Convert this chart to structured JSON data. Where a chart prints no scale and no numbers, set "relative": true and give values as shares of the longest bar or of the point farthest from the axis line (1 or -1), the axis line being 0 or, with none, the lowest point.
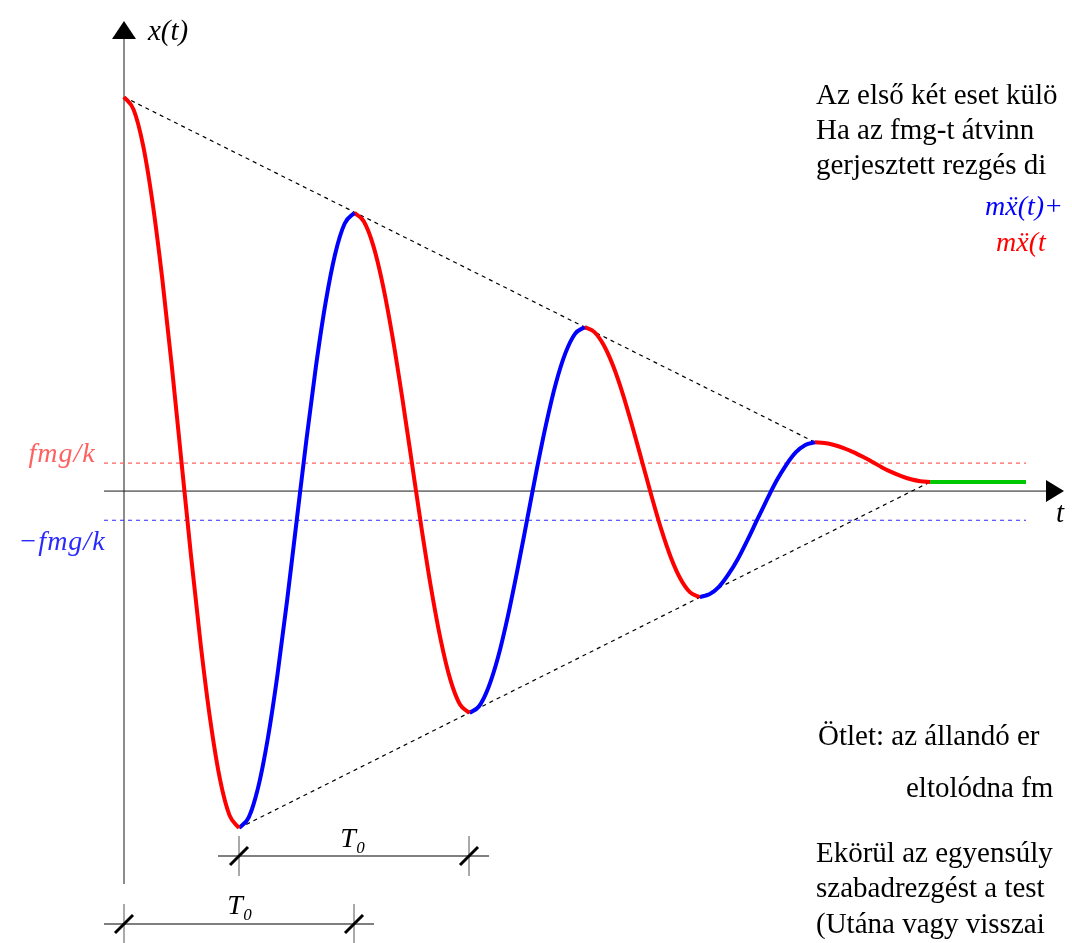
{
  "chart_data": {
    "type": "line",
    "relative": true,
    "marker": "none",
    "line_style": "solid",
    "xlabel": "t",
    "ylabel": "x(t)",
    "categories": [
      null,
      null,
      null,
      null,
      null,
      null,
      null,
      null,
      null,
      null,
      null,
      null,
      null,
      null,
      null,
      null,
      null,
      null,
      null,
      null,
      null,
      null,
      null,
      null,
      null,
      null,
      null,
      null,
      null,
      null,
      null,
      null,
      null,
      null,
      null,
      null,
      null,
      null,
      null,
      null,
      null,
      null,
      null,
      null,
      null,
      null,
      null,
      null,
      null,
      null,
      null,
      null,
      null,
      null,
      null,
      null,
      null,
      null,
      null,
      null,
      null,
      null,
      null,
      null,
      null,
      null,
      null,
      null,
      null,
      null,
      null,
      null,
      null,
      null,
      null,
      null,
      null,
      null,
      null,
      null,
      null,
      null,
      null,
      null,
      null,
      null,
      null,
      null,
      null,
      null,
      null,
      null,
      null,
      null,
      null
    ],
    "series": [
      {
        "color": "#ff0000",
        "values": [
          1,
          0.968,
          0.876,
          0.728,
          0.536,
          0.313,
          0.072,
          -0.168,
          -0.391,
          -0.583,
          -0.731,
          -0.823,
          -0.855,
          null,
          null,
          null,
          null,
          null,
          null,
          null,
          null,
          null,
          null,
          null,
          null,
          null,
          null,
          null,
          null,
          null,
          null,
          null,
          null,
          null,
          null,
          null,
          null,
          null,
          null,
          null,
          null,
          null,
          null,
          null,
          null,
          null,
          null,
          null,
          null,
          null,
          null,
          null,
          null,
          null,
          null,
          null,
          null,
          null,
          null,
          null,
          null,
          null,
          null,
          null,
          null,
          null,
          null,
          null,
          null,
          null,
          null,
          null,
          null,
          null,
          null,
          null,
          null,
          null,
          null,
          null,
          null,
          null,
          null,
          null,
          null,
          null,
          null,
          null,
          null,
          null,
          null,
          null,
          null,
          null,
          null
        ]
      },
      {
        "color": "#0000ff",
        "values": [
          null,
          null,
          null,
          null,
          null,
          null,
          null,
          null,
          null,
          null,
          null,
          null,
          -0.855,
          -0.828,
          -0.75,
          -0.626,
          -0.465,
          -0.277,
          -0.074,
          0.128,
          0.316,
          0.477,
          0.601,
          0.679,
          0.706,
          null,
          null,
          null,
          null,
          null,
          null,
          null,
          null,
          null,
          null,
          null,
          null,
          null,
          null,
          null,
          null,
          null,
          null,
          null,
          null,
          null,
          null,
          null,
          null,
          null,
          null,
          null,
          null,
          null,
          null,
          null,
          null,
          null,
          null,
          null,
          null,
          null,
          null,
          null,
          null,
          null,
          null,
          null,
          null,
          null,
          null,
          null,
          null,
          null,
          null,
          null,
          null,
          null,
          null,
          null,
          null,
          null,
          null,
          null,
          null,
          null,
          null,
          null,
          null,
          null,
          null,
          null,
          null,
          null,
          null
        ]
      },
      {
        "color": "#ff0000",
        "values": [
          null,
          null,
          null,
          null,
          null,
          null,
          null,
          null,
          null,
          null,
          null,
          null,
          null,
          null,
          null,
          null,
          null,
          null,
          null,
          null,
          null,
          null,
          null,
          null,
          0.706,
          0.684,
          0.621,
          0.52,
          0.389,
          0.236,
          0.072,
          -0.093,
          -0.246,
          -0.377,
          -0.478,
          -0.541,
          -0.563,
          null,
          null,
          null,
          null,
          null,
          null,
          null,
          null,
          null,
          null,
          null,
          null,
          null,
          null,
          null,
          null,
          null,
          null,
          null,
          null,
          null,
          null,
          null,
          null,
          null,
          null,
          null,
          null,
          null,
          null,
          null,
          null,
          null,
          null,
          null,
          null,
          null,
          null,
          null,
          null,
          null,
          null,
          null,
          null,
          null,
          null,
          null,
          null,
          null,
          null,
          null,
          null,
          null,
          null,
          null,
          null,
          null,
          null
        ]
      },
      {
        "color": "#0000ff",
        "values": [
          null,
          null,
          null,
          null,
          null,
          null,
          null,
          null,
          null,
          null,
          null,
          null,
          null,
          null,
          null,
          null,
          null,
          null,
          null,
          null,
          null,
          null,
          null,
          null,
          null,
          null,
          null,
          null,
          null,
          null,
          null,
          null,
          null,
          null,
          null,
          null,
          -0.563,
          -0.546,
          -0.497,
          -0.42,
          -0.318,
          -0.2,
          -0.074,
          0.053,
          0.171,
          0.273,
          0.35,
          0.399,
          0.416,
          null,
          null,
          null,
          null,
          null,
          null,
          null,
          null,
          null,
          null,
          null,
          null,
          null,
          null,
          null,
          null,
          null,
          null,
          null,
          null,
          null,
          null,
          null,
          null,
          null,
          null,
          null,
          null,
          null,
          null,
          null,
          null,
          null,
          null,
          null,
          null,
          null,
          null,
          null,
          null,
          null,
          null,
          null,
          null,
          null,
          null
        ]
      },
      {
        "color": "#ff0000",
        "values": [
          null,
          null,
          null,
          null,
          null,
          null,
          null,
          null,
          null,
          null,
          null,
          null,
          null,
          null,
          null,
          null,
          null,
          null,
          null,
          null,
          null,
          null,
          null,
          null,
          null,
          null,
          null,
          null,
          null,
          null,
          null,
          null,
          null,
          null,
          null,
          null,
          null,
          null,
          null,
          null,
          null,
          null,
          null,
          null,
          null,
          null,
          null,
          null,
          0.416,
          0.404,
          0.37,
          0.316,
          0.245,
          0.162,
          0.074,
          -0.015,
          -0.098,
          -0.169,
          -0.223,
          -0.257,
          -0.269,
          null,
          null,
          null,
          null,
          null,
          null,
          null,
          null,
          null,
          null,
          null,
          null,
          null,
          null,
          null,
          null,
          null,
          null,
          null,
          null,
          null,
          null,
          null,
          null,
          null,
          null,
          null,
          null,
          null,
          null,
          null,
          null,
          null,
          null
        ]
      },
      {
        "color": "#0000ff",
        "values": [
          null,
          null,
          null,
          null,
          null,
          null,
          null,
          null,
          null,
          null,
          null,
          null,
          null,
          null,
          null,
          null,
          null,
          null,
          null,
          null,
          null,
          null,
          null,
          null,
          null,
          null,
          null,
          null,
          null,
          null,
          null,
          null,
          null,
          null,
          null,
          null,
          null,
          null,
          null,
          null,
          null,
          null,
          null,
          null,
          null,
          null,
          null,
          null,
          null,
          null,
          null,
          null,
          null,
          null,
          null,
          null,
          null,
          null,
          null,
          null,
          -0.269,
          -0.262,
          -0.243,
          -0.211,
          -0.171,
          -0.123,
          -0.072,
          -0.022,
          0.026,
          0.066,
          0.098,
          0.117,
          0.124,
          null,
          null,
          null,
          null,
          null,
          null,
          null,
          null,
          null,
          null,
          null,
          null,
          null,
          null,
          null,
          null,
          null,
          null,
          null,
          null,
          null,
          null
        ]
      },
      {
        "color": "#ff0000",
        "values": [
          null,
          null,
          null,
          null,
          null,
          null,
          null,
          null,
          null,
          null,
          null,
          null,
          null,
          null,
          null,
          null,
          null,
          null,
          null,
          null,
          null,
          null,
          null,
          null,
          null,
          null,
          null,
          null,
          null,
          null,
          null,
          null,
          null,
          null,
          null,
          null,
          null,
          null,
          null,
          null,
          null,
          null,
          null,
          null,
          null,
          null,
          null,
          null,
          null,
          null,
          null,
          null,
          null,
          null,
          null,
          null,
          null,
          null,
          null,
          null,
          null,
          null,
          null,
          null,
          null,
          null,
          null,
          null,
          null,
          null,
          null,
          null,
          0.124,
          0.122,
          0.117,
          0.109,
          0.099,
          0.087,
          0.074,
          0.06,
          0.048,
          0.038,
          0.03,
          0.025,
          0.023,
          null,
          null,
          null,
          null,
          null,
          null,
          null,
          null,
          null,
          null
        ]
      },
      {
        "color": "#00c800",
        "values": [
          null,
          null,
          null,
          null,
          null,
          null,
          null,
          null,
          null,
          null,
          null,
          null,
          null,
          null,
          null,
          null,
          null,
          null,
          null,
          null,
          null,
          null,
          null,
          null,
          null,
          null,
          null,
          null,
          null,
          null,
          null,
          null,
          null,
          null,
          null,
          null,
          null,
          null,
          null,
          null,
          null,
          null,
          null,
          null,
          null,
          null,
          null,
          null,
          null,
          null,
          null,
          null,
          null,
          null,
          null,
          null,
          null,
          null,
          null,
          null,
          null,
          null,
          null,
          null,
          null,
          null,
          null,
          null,
          null,
          null,
          null,
          null,
          null,
          null,
          null,
          null,
          null,
          null,
          null,
          null,
          null,
          null,
          null,
          null,
          0.023,
          0.023,
          0.023,
          0.023,
          0.023,
          0.023,
          0.023,
          0.023,
          0.023,
          0.023,
          0.023
        ]
      },
      {
        "color": "#000000",
        "line_style": "dashed",
        "values": [
          1,
          null,
          null,
          null,
          null,
          null,
          null,
          null,
          null,
          null,
          null,
          null,
          null,
          null,
          null,
          null,
          null,
          null,
          null,
          null,
          null,
          null,
          null,
          null,
          null,
          null,
          null,
          null,
          null,
          null,
          null,
          null,
          null,
          null,
          null,
          null,
          null,
          null,
          null,
          null,
          null,
          null,
          null,
          null,
          null,
          null,
          null,
          null,
          null,
          null,
          null,
          null,
          null,
          null,
          null,
          null,
          null,
          null,
          null,
          null,
          null,
          null,
          null,
          null,
          null,
          null,
          null,
          null,
          null,
          null,
          null,
          null,
          0.124,
          null,
          null,
          null,
          null,
          null,
          null,
          null,
          null,
          null,
          null,
          null,
          null,
          null,
          null,
          null,
          null,
          null,
          null,
          null,
          null,
          null,
          null
        ]
      },
      {
        "color": "#000000",
        "line_style": "dashed",
        "values": [
          null,
          null,
          null,
          null,
          null,
          null,
          null,
          null,
          null,
          null,
          null,
          null,
          -0.855,
          null,
          null,
          null,
          null,
          null,
          null,
          null,
          null,
          null,
          null,
          null,
          null,
          null,
          null,
          null,
          null,
          null,
          null,
          null,
          null,
          null,
          null,
          null,
          null,
          null,
          null,
          null,
          null,
          null,
          null,
          null,
          null,
          null,
          null,
          null,
          null,
          null,
          null,
          null,
          null,
          null,
          null,
          null,
          null,
          null,
          null,
          null,
          null,
          null,
          null,
          null,
          null,
          null,
          null,
          null,
          null,
          null,
          null,
          null,
          null,
          null,
          null,
          null,
          null,
          null,
          null,
          null,
          null,
          null,
          null,
          null,
          0.023,
          null,
          null,
          null,
          null,
          null,
          null,
          null,
          null,
          null,
          null
        ]
      }
    ],
    "ref_lines": [
      {
        "axis": "y",
        "value": 0.071,
        "label": "fmg/k",
        "color": "#ff6060",
        "line_style": "dashed"
      },
      {
        "axis": "y",
        "value": -0.074,
        "label": "−fmg/k",
        "color": "#2a2aff",
        "line_style": "dashed"
      }
    ],
    "annotations": [
      "Az első két eset külö",
      "Ha az fmg-t átvinn",
      "gerjesztett rezgés di",
      "mẍ(t)+",
      "mẍ(t",
      "Ötlet: az állandó er",
      "eltolódna fm",
      "Ekörül az egyensúly",
      "szabadrezgést a test",
      "(Utána vagy visszai",
      "T₀",
      "T₀"
    ]
  }
}
